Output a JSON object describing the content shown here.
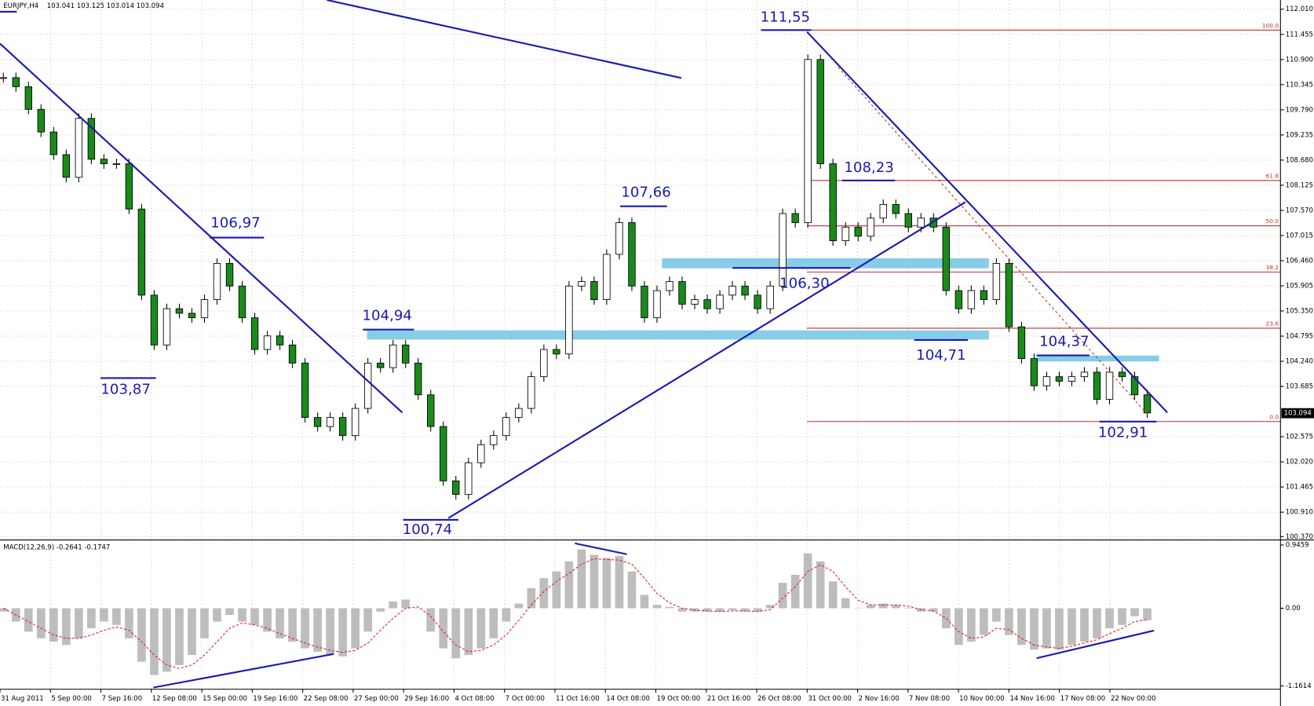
{
  "header": {
    "symbol": "EURJPY,H4",
    "quote": "103.041 103.125 103.014 103.094"
  },
  "price": {
    "ylim": [
      100.37,
      112.01
    ],
    "yticks": [
      {
        "value": 112.01,
        "label": "112.010"
      },
      111.455,
      {
        "value": 110.9,
        "label": "110.900"
      },
      110.345,
      {
        "value": 109.79,
        "label": "109.790"
      },
      109.235,
      {
        "value": 108.68,
        "label": "108.680"
      },
      108.125,
      {
        "value": 107.57,
        "label": "107.570"
      },
      107.015,
      {
        "value": 106.46,
        "label": "106.460"
      },
      105.905,
      {
        "value": 105.35,
        "label": "105.350"
      },
      104.795,
      {
        "value": 104.24,
        "label": "104.240"
      },
      103.685,
      102.575,
      {
        "value": 102.02,
        "label": "102.020"
      },
      101.465,
      {
        "value": 100.91,
        "label": "100.910"
      },
      {
        "value": 100.37,
        "label": "100.370"
      }
    ],
    "current": 103.094,
    "closes": [
      110.5,
      110.3,
      109.8,
      109.3,
      108.8,
      108.3,
      109.6,
      108.7,
      108.6,
      108.6,
      107.6,
      105.7,
      104.6,
      105.4,
      105.3,
      105.2,
      105.6,
      106.4,
      105.9,
      105.2,
      104.5,
      104.8,
      104.6,
      104.2,
      103.0,
      102.8,
      103.0,
      102.6,
      103.2,
      104.2,
      104.1,
      104.6,
      104.2,
      103.5,
      102.8,
      101.6,
      101.3,
      102.0,
      102.4,
      102.6,
      103.0,
      103.2,
      103.9,
      104.5,
      104.4,
      105.9,
      106.0,
      105.6,
      106.6,
      107.3,
      105.9,
      105.2,
      105.8,
      106.0,
      105.5,
      105.6,
      105.4,
      105.7,
      105.9,
      105.7,
      105.4,
      105.9,
      107.5,
      107.3,
      110.9,
      108.6,
      106.9,
      107.2,
      107.0,
      107.4,
      107.7,
      107.5,
      107.2,
      107.4,
      107.2,
      105.8,
      105.4,
      105.8,
      105.6,
      106.4,
      105.0,
      104.3,
      103.7,
      103.9,
      103.8,
      103.9,
      104.0,
      103.4,
      104.0,
      103.9,
      103.5,
      103.1
    ],
    "annotations": [
      {
        "label": "111,55",
        "value": 111.55
      },
      {
        "label": "108,23",
        "value": 108.23
      },
      {
        "label": "107,66",
        "value": 107.66
      },
      {
        "label": "106,97",
        "value": 106.97
      },
      {
        "label": "106,30",
        "value": 106.3
      },
      {
        "label": "104,94",
        "value": 104.94
      },
      {
        "label": "104,71",
        "value": 104.71
      },
      {
        "label": "104,37",
        "value": 104.37
      },
      {
        "label": "103,87",
        "value": 103.87
      },
      {
        "label": "102,91",
        "value": 102.91
      },
      {
        "label": "100,74",
        "value": 100.74
      }
    ],
    "fibonacci": [
      {
        "label": "100.0",
        "ratio": 100,
        "price": 111.55
      },
      {
        "label": "61.8",
        "ratio": 61.8,
        "price": 108.23
      },
      {
        "label": "50.0",
        "ratio": 50,
        "price": 107.23
      },
      {
        "label": "38.2",
        "ratio": 38.2,
        "price": 106.21
      },
      {
        "label": "23.6",
        "ratio": 23.6,
        "price": 104.97
      },
      {
        "label": "0.0",
        "ratio": 0,
        "price": 102.91
      }
    ]
  },
  "macd": {
    "label": "MACD(12,26,9) -0.2641 -0.1747",
    "ylim": [
      -1.1614,
      0.9459
    ],
    "yticks": [
      0.9459,
      {
        "value": 0,
        "label": "0.00"
      },
      -1.1614
    ],
    "histogram": [
      -0.05,
      -0.2,
      -0.35,
      -0.45,
      -0.5,
      -0.55,
      -0.45,
      -0.3,
      -0.2,
      -0.25,
      -0.45,
      -0.8,
      -1.0,
      -0.95,
      -0.85,
      -0.7,
      -0.45,
      -0.2,
      -0.1,
      -0.2,
      -0.25,
      -0.35,
      -0.45,
      -0.5,
      -0.6,
      -0.65,
      -0.7,
      -0.72,
      -0.6,
      -0.35,
      -0.05,
      0.1,
      0.13,
      0.0,
      -0.35,
      -0.6,
      -0.75,
      -0.7,
      -0.6,
      -0.45,
      -0.2,
      0.07,
      0.3,
      0.45,
      0.55,
      0.7,
      0.88,
      0.8,
      0.75,
      0.78,
      0.55,
      0.2,
      0.05,
      0.02,
      -0.05,
      -0.05,
      -0.05,
      -0.05,
      -0.03,
      -0.05,
      -0.05,
      0.05,
      0.38,
      0.5,
      0.82,
      0.7,
      0.4,
      0.15,
      0.0,
      0.05,
      0.07,
      0.05,
      0.0,
      -0.05,
      -0.05,
      -0.3,
      -0.55,
      -0.5,
      -0.4,
      -0.2,
      -0.4,
      -0.55,
      -0.62,
      -0.6,
      -0.62,
      -0.55,
      -0.5,
      -0.45,
      -0.3,
      -0.25,
      -0.12,
      -0.18
    ],
    "signal": [
      0.0,
      -0.1,
      -0.2,
      -0.3,
      -0.4,
      -0.45,
      -0.45,
      -0.4,
      -0.33,
      -0.28,
      -0.33,
      -0.5,
      -0.7,
      -0.85,
      -0.9,
      -0.85,
      -0.7,
      -0.5,
      -0.3,
      -0.22,
      -0.25,
      -0.3,
      -0.38,
      -0.45,
      -0.52,
      -0.58,
      -0.63,
      -0.66,
      -0.63,
      -0.52,
      -0.33,
      -0.15,
      0.0,
      0.02,
      -0.12,
      -0.35,
      -0.55,
      -0.65,
      -0.63,
      -0.55,
      -0.4,
      -0.18,
      0.05,
      0.25,
      0.4,
      0.52,
      0.66,
      0.74,
      0.73,
      0.72,
      0.66,
      0.45,
      0.22,
      0.08,
      0.0,
      -0.03,
      -0.04,
      -0.05,
      -0.04,
      -0.04,
      -0.05,
      -0.02,
      0.15,
      0.32,
      0.55,
      0.65,
      0.55,
      0.32,
      0.12,
      0.05,
      0.05,
      0.05,
      0.03,
      -0.02,
      -0.04,
      -0.15,
      -0.35,
      -0.45,
      -0.43,
      -0.3,
      -0.32,
      -0.45,
      -0.55,
      -0.58,
      -0.6,
      -0.57,
      -0.52,
      -0.47,
      -0.38,
      -0.3,
      -0.2,
      -0.17
    ]
  },
  "dates": [
    "31 Aug 2011",
    "5 Sep 00:00",
    "7 Sep 16:00",
    "12 Sep 08:00",
    "15 Sep 00:00",
    "19 Sep 16:00",
    "22 Sep 08:00",
    "27 Sep 00:00",
    "29 Sep 16:00",
    "4 Oct 08:00",
    "7 Oct 00:00",
    "11 Oct 16:00",
    "14 Oct 08:00",
    "19 Oct 00:00",
    "21 Oct 16:00",
    "26 Oct 08:00",
    "31 Oct 00:00",
    "2 Nov 16:00",
    "7 Nov 08:00",
    "10 Nov 00:00",
    "14 Nov 16:00",
    "17 Nov 08:00",
    "22 Nov 00:00"
  ]
}
